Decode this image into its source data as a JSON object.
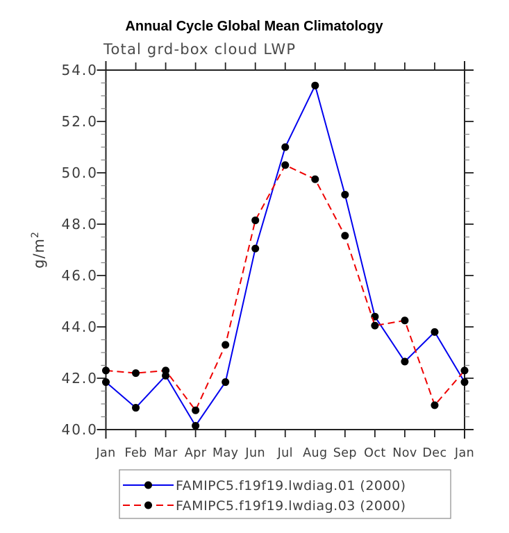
{
  "header": {
    "title": "Annual Cycle Global Mean Climatology",
    "subtitle": "Total grd-box cloud LWP"
  },
  "chart_data": {
    "type": "line",
    "title": "Annual Cycle Global Mean Climatology",
    "subtitle": "Total grd-box cloud LWP",
    "xlabel": "",
    "ylabel": {
      "base": "g/m",
      "sup": "2"
    },
    "categories": [
      "Jan",
      "Feb",
      "Mar",
      "Apr",
      "May",
      "Jun",
      "Jul",
      "Aug",
      "Sep",
      "Oct",
      "Nov",
      "Dec",
      "Jan"
    ],
    "ylim": [
      40.0,
      54.0
    ],
    "ytick_step": 2.0,
    "yminor_step": 0.5,
    "ytick_labels": [
      "40.0",
      "42.0",
      "44.0",
      "46.0",
      "48.0",
      "50.0",
      "52.0",
      "54.0"
    ],
    "grid": false,
    "legend_position": "bottom",
    "frame_color": "#222222",
    "minor_tick_color": "#888888",
    "marker_color": "#000000",
    "series": [
      {
        "name": "FAMIPC5.f19f19.lwdiag.01 (2000)",
        "color": "#0000ee",
        "style": "solid",
        "marker": "circle",
        "values": [
          41.85,
          40.85,
          42.1,
          40.15,
          41.85,
          47.05,
          51.0,
          53.4,
          49.15,
          44.4,
          42.65,
          43.8,
          41.85
        ]
      },
      {
        "name": "FAMIPC5.f19f19.lwdiag.03 (2000)",
        "color": "#ee0000",
        "style": "dashed",
        "marker": "circle",
        "values": [
          42.3,
          42.2,
          42.3,
          40.75,
          43.3,
          48.15,
          50.3,
          49.75,
          47.55,
          44.05,
          44.25,
          40.95,
          42.3
        ]
      }
    ]
  }
}
